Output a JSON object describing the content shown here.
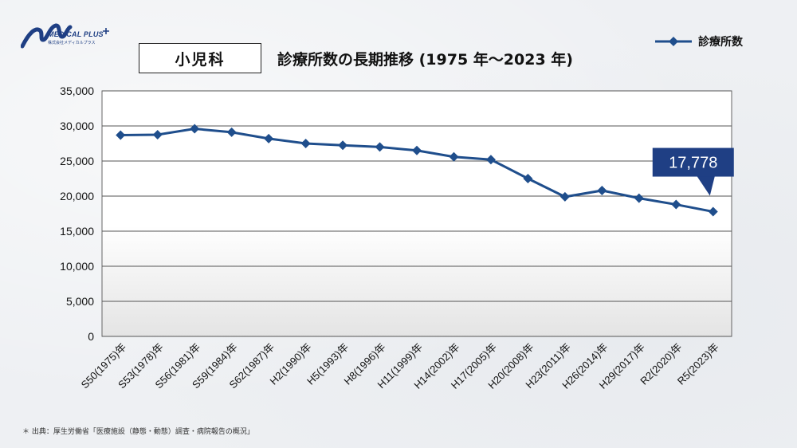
{
  "brand": {
    "name": "MEDICAL PLUS",
    "sub": "株式会社メディカルプラス",
    "color": "#1f3f84"
  },
  "category": "小児科",
  "title": "診療所数の長期推移 (1975 年～2023 年)",
  "source": "＊ 出典：厚生労働省「医療施設（静態・動態）調査・病院報告の概況」",
  "callout": "17,778",
  "chart_data": {
    "type": "line",
    "title": "診療所数の長期推移 (1975 年～2023 年)",
    "xlabel": "",
    "ylabel": "",
    "ylim": [
      0,
      35000
    ],
    "yticks": [
      0,
      5000,
      10000,
      15000,
      20000,
      25000,
      30000,
      35000
    ],
    "ytick_labels": [
      "0",
      "5,000",
      "10,000",
      "15,000",
      "20,000",
      "25,000",
      "30,000",
      "35,000"
    ],
    "grid": true,
    "legend": "top-right",
    "categories": [
      "S50(1975)年",
      "S53(1978)年",
      "S56(1981)年",
      "S59(1984)年",
      "S62(1987)年",
      "H2(1990)年",
      "H5(1993)年",
      "H8(1996)年",
      "H11(1999)年",
      "H14(2002)年",
      "H17(2005)年",
      "H20(2008)年",
      "H23(2011)年",
      "H26(2014)年",
      "H29(2017)年",
      "R2(2020)年",
      "R5(2023)年"
    ],
    "series": [
      {
        "name": "診療所数",
        "color": "#1f4e8c",
        "values": [
          28700,
          28750,
          29600,
          29100,
          28200,
          27500,
          27250,
          27000,
          26500,
          25600,
          25200,
          22500,
          19900,
          20800,
          19700,
          18800,
          17778
        ]
      }
    ]
  }
}
